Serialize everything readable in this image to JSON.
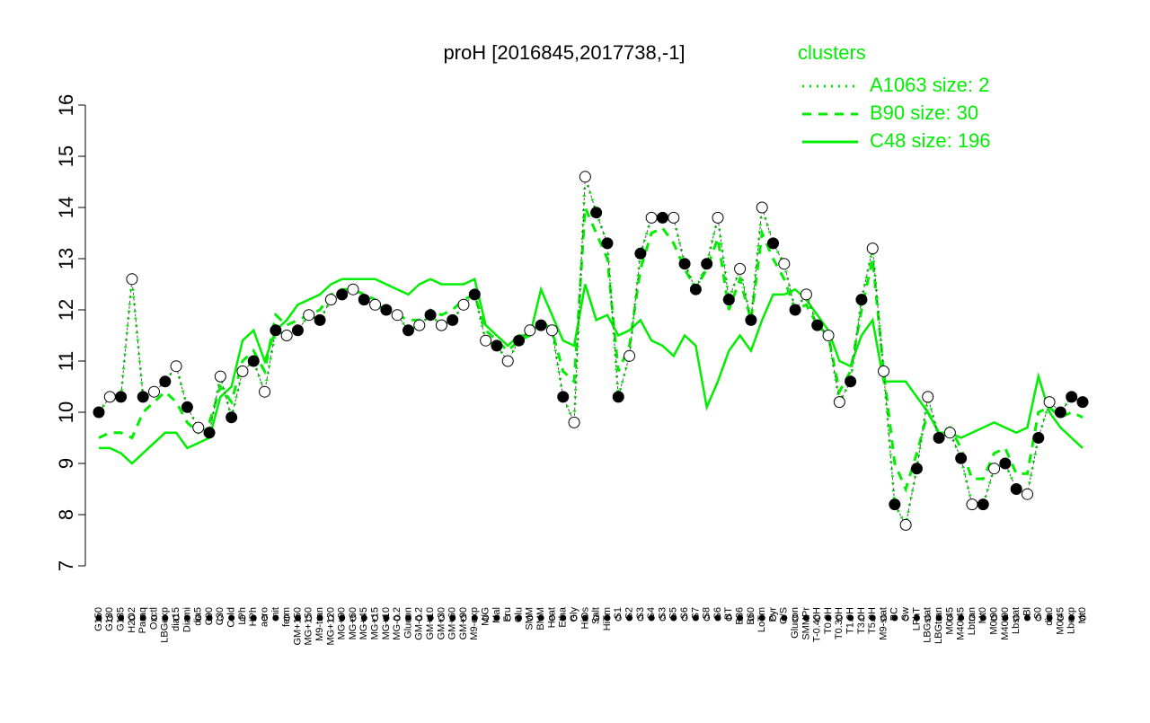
{
  "chart_data": {
    "type": "line",
    "title": "proH [2016845,2017738,-1]",
    "legend_title": "clusters",
    "legend_color": "#00ee00",
    "categories": [
      "G150",
      "G180",
      "G135",
      "H2O2",
      "Paraq",
      "Oxctl",
      "LBGexp",
      "dia15",
      "Diami",
      "dia5",
      "C90",
      "C30",
      "Cold",
      "LPh",
      "HPh",
      "aero",
      "nit",
      "ferm",
      "GM+150",
      "MG+150",
      "M9-tran",
      "MG+120",
      "MG+90",
      "MG+60",
      "MG+45",
      "MG+15",
      "MG+10",
      "MG-0.2",
      "Glucon",
      "GM-0.2",
      "GM+10",
      "GM+30",
      "GM+60",
      "GM+90",
      "M9-exp",
      "M/G",
      "Mal",
      "Fru",
      "Glu",
      "SMM",
      "BMM",
      "Heat",
      "Etha",
      "Gly",
      "HiOs",
      "Salt",
      "HiTm",
      "S1",
      "S2",
      "S3",
      "S4",
      "S3",
      "S5",
      "S6",
      "S7",
      "S8",
      "S6",
      "BT",
      "B36",
      "B60",
      "LoTm",
      "Pyr",
      "G/S",
      "Glucon",
      "SMMPr",
      "T-0.40H",
      "T0.0H",
      "T0.30H",
      "T1.0H",
      "T3.0H",
      "T5.0H",
      "M9-stat",
      "BC",
      "Sw",
      "LPhT",
      "LBGstat",
      "LBGtran",
      "M0t45",
      "M40t45",
      "Lbtran",
      "Mt0",
      "M0t90",
      "M40t90",
      "Lbstat",
      "Bl",
      "S0",
      "dia0",
      "M0t45",
      "Lbexp",
      "Mt0"
    ],
    "points": {
      "values": [
        10.0,
        10.3,
        10.3,
        12.6,
        10.3,
        10.4,
        10.6,
        10.9,
        10.1,
        9.7,
        9.6,
        10.7,
        9.9,
        10.8,
        11.0,
        10.4,
        11.6,
        11.5,
        11.6,
        11.9,
        11.8,
        12.2,
        12.3,
        12.4,
        12.2,
        12.1,
        12.0,
        11.9,
        11.6,
        11.7,
        11.9,
        11.7,
        11.8,
        12.1,
        12.3,
        11.4,
        11.3,
        11.0,
        11.4,
        11.6,
        11.7,
        11.6,
        10.3,
        9.8,
        14.6,
        13.9,
        13.3,
        10.3,
        11.1,
        13.1,
        13.8,
        13.8,
        13.8,
        12.9,
        12.4,
        12.9,
        13.8,
        12.2,
        12.8,
        11.8,
        14.0,
        13.3,
        12.9,
        12.0,
        12.3,
        11.7,
        11.5,
        10.2,
        10.6,
        12.2,
        13.2,
        10.8,
        8.2,
        7.8,
        8.9,
        10.3,
        9.5,
        9.6,
        9.1,
        8.2,
        8.2,
        8.9,
        9.0,
        8.5,
        8.4,
        9.5,
        10.2,
        10.0,
        10.3,
        10.2
      ],
      "fills": [
        "#000000",
        "#ffffff",
        "#000000",
        "#ffffff",
        "#000000",
        "#ffffff",
        "#000000",
        "#ffffff",
        "#000000",
        "#ffffff",
        "#000000",
        "#ffffff",
        "#000000",
        "#ffffff",
        "#000000",
        "#ffffff",
        "#000000",
        "#ffffff",
        "#000000",
        "#ffffff",
        "#000000",
        "#ffffff",
        "#000000",
        "#ffffff",
        "#000000",
        "#ffffff",
        "#000000",
        "#ffffff",
        "#000000",
        "#ffffff",
        "#000000",
        "#ffffff",
        "#000000",
        "#ffffff",
        "#000000",
        "#ffffff",
        "#000000",
        "#ffffff",
        "#000000",
        "#ffffff",
        "#000000",
        "#ffffff",
        "#000000",
        "#ffffff",
        "#ffffff",
        "#000000",
        "#000000",
        "#000000",
        "#ffffff",
        "#000000",
        "#ffffff",
        "#000000",
        "#ffffff",
        "#000000",
        "#000000",
        "#000000",
        "#ffffff",
        "#000000",
        "#ffffff",
        "#000000",
        "#ffffff",
        "#000000",
        "#ffffff",
        "#000000",
        "#ffffff",
        "#000000",
        "#ffffff",
        "#ffffff",
        "#000000",
        "#000000",
        "#ffffff",
        "#ffffff",
        "#000000",
        "#ffffff",
        "#000000",
        "#ffffff",
        "#000000",
        "#ffffff",
        "#000000",
        "#ffffff",
        "#000000",
        "#ffffff",
        "#000000",
        "#000000",
        "#ffffff",
        "#000000",
        "#ffffff",
        "#000000",
        "#000000",
        "#000000"
      ]
    },
    "series": [
      {
        "name": "A1063 size: 2",
        "color": "#00ee00",
        "dash": "dotted",
        "values": [
          10.0,
          10.3,
          10.3,
          12.6,
          10.3,
          10.4,
          10.6,
          10.9,
          10.1,
          9.7,
          9.6,
          10.7,
          9.9,
          10.8,
          11.0,
          10.4,
          11.6,
          11.5,
          11.6,
          11.9,
          11.8,
          12.2,
          12.3,
          12.4,
          12.2,
          12.1,
          12.0,
          11.9,
          11.6,
          11.7,
          11.9,
          11.7,
          11.8,
          12.1,
          12.3,
          11.4,
          11.3,
          11.0,
          11.4,
          11.6,
          11.7,
          11.6,
          10.3,
          9.8,
          14.6,
          13.9,
          13.3,
          10.3,
          11.1,
          13.1,
          13.8,
          13.8,
          13.8,
          12.9,
          12.4,
          12.9,
          13.8,
          12.2,
          12.8,
          11.8,
          14.0,
          13.3,
          12.9,
          12.0,
          12.3,
          11.7,
          11.5,
          10.2,
          10.6,
          12.2,
          13.2,
          10.8,
          8.2,
          7.8,
          8.9,
          10.3,
          9.5,
          9.6,
          9.1,
          8.2,
          8.2,
          8.9,
          9.0,
          8.5,
          8.4,
          9.5,
          10.2,
          10.0,
          10.3,
          10.2
        ]
      },
      {
        "name": "B90 size: 30",
        "color": "#00ee00",
        "dash": "dashed",
        "values": [
          9.5,
          9.6,
          9.6,
          9.5,
          10.0,
          10.2,
          10.4,
          10.2,
          9.8,
          9.6,
          9.8,
          10.5,
          10.2,
          11.0,
          11.2,
          10.8,
          11.9,
          11.7,
          11.8,
          11.9,
          12.0,
          12.3,
          12.4,
          12.4,
          12.3,
          12.2,
          12.0,
          11.9,
          11.8,
          11.8,
          12.0,
          11.9,
          12.0,
          12.2,
          12.3,
          11.6,
          11.4,
          11.2,
          11.4,
          11.5,
          11.8,
          11.6,
          10.8,
          10.6,
          14.0,
          13.5,
          13.0,
          10.8,
          11.3,
          12.8,
          13.5,
          13.6,
          13.3,
          12.8,
          12.4,
          12.8,
          13.4,
          12.0,
          12.6,
          11.8,
          13.5,
          13.0,
          12.6,
          12.0,
          12.1,
          11.7,
          11.5,
          10.4,
          10.8,
          12.0,
          13.0,
          10.8,
          9.0,
          8.5,
          9.2,
          10.0,
          9.6,
          9.7,
          9.3,
          8.7,
          8.7,
          9.2,
          9.3,
          8.8,
          8.8,
          10.0,
          10.1,
          9.9,
          10.0,
          9.9
        ]
      },
      {
        "name": "C48 size: 196",
        "color": "#00ee00",
        "dash": "solid",
        "values": [
          9.3,
          9.3,
          9.2,
          9.0,
          9.2,
          9.4,
          9.6,
          9.6,
          9.3,
          9.4,
          9.5,
          10.3,
          10.5,
          11.4,
          11.6,
          11.0,
          11.6,
          11.8,
          12.1,
          12.2,
          12.3,
          12.5,
          12.6,
          12.6,
          12.6,
          12.6,
          12.5,
          12.4,
          12.3,
          12.5,
          12.6,
          12.5,
          12.5,
          12.5,
          12.6,
          11.7,
          11.5,
          11.3,
          11.5,
          11.5,
          12.4,
          11.9,
          11.4,
          11.3,
          12.5,
          11.8,
          11.9,
          11.5,
          11.6,
          11.8,
          11.4,
          11.3,
          11.1,
          11.5,
          11.3,
          10.1,
          10.6,
          11.2,
          11.5,
          11.2,
          11.8,
          12.3,
          12.3,
          12.4,
          12.2,
          11.9,
          11.6,
          11.0,
          10.9,
          11.5,
          11.8,
          10.6,
          10.6,
          10.6,
          10.3,
          10.0,
          9.6,
          9.6,
          9.5,
          9.6,
          9.7,
          9.8,
          9.7,
          9.6,
          9.7,
          10.7,
          10.0,
          9.7,
          9.5,
          9.3
        ]
      }
    ],
    "ylim": [
      7,
      16
    ],
    "yticks": [
      7,
      8,
      9,
      10,
      11,
      12,
      13,
      14,
      15,
      16
    ]
  }
}
